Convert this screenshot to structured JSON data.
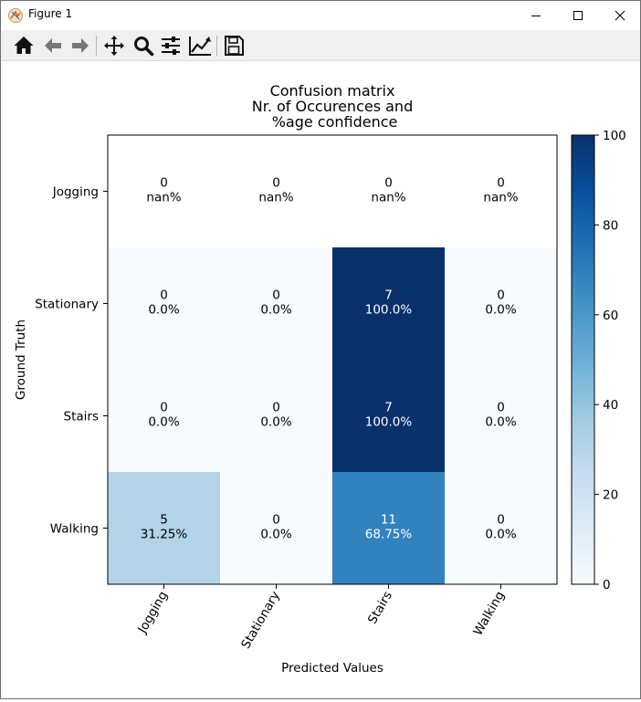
{
  "window": {
    "title": "Figure 1",
    "controls": [
      "minimize",
      "maximize",
      "close"
    ]
  },
  "toolbar": {
    "buttons": [
      "home-icon",
      "back-icon",
      "forward-icon",
      "pan-icon",
      "zoom-icon",
      "configure-subplots-icon",
      "edit-axis-icon",
      "save-icon"
    ]
  },
  "chart_data": {
    "type": "heatmap",
    "title": "Confusion matrix\nNr. of Occurences and\n %age confidence",
    "xlabel": "Predicted Values",
    "ylabel": "Ground Truth",
    "x_categories": [
      "Jogging",
      "Stationary",
      "Stairs",
      "Walking"
    ],
    "y_categories": [
      "Jogging",
      "Stationary",
      "Stairs",
      "Walking"
    ],
    "counts": [
      [
        0,
        0,
        0,
        0
      ],
      [
        0,
        0,
        7,
        0
      ],
      [
        0,
        0,
        7,
        0
      ],
      [
        5,
        0,
        11,
        0
      ]
    ],
    "percent_labels": [
      [
        "nan%",
        "nan%",
        "nan%",
        "nan%"
      ],
      [
        "0.0%",
        "0.0%",
        "100.0%",
        "0.0%"
      ],
      [
        "0.0%",
        "0.0%",
        "100.0%",
        "0.0%"
      ],
      [
        "31.25%",
        "0.0%",
        "68.75%",
        "0.0%"
      ]
    ],
    "percent_values": [
      [
        null,
        null,
        null,
        null
      ],
      [
        0,
        0,
        100,
        0
      ],
      [
        0,
        0,
        100,
        0
      ],
      [
        31.25,
        0,
        68.75,
        0
      ]
    ],
    "colormap": "Blues",
    "colorbar": {
      "min": 0,
      "max": 100,
      "ticks": [
        0,
        20,
        40,
        60,
        80,
        100
      ]
    },
    "grid": false
  }
}
